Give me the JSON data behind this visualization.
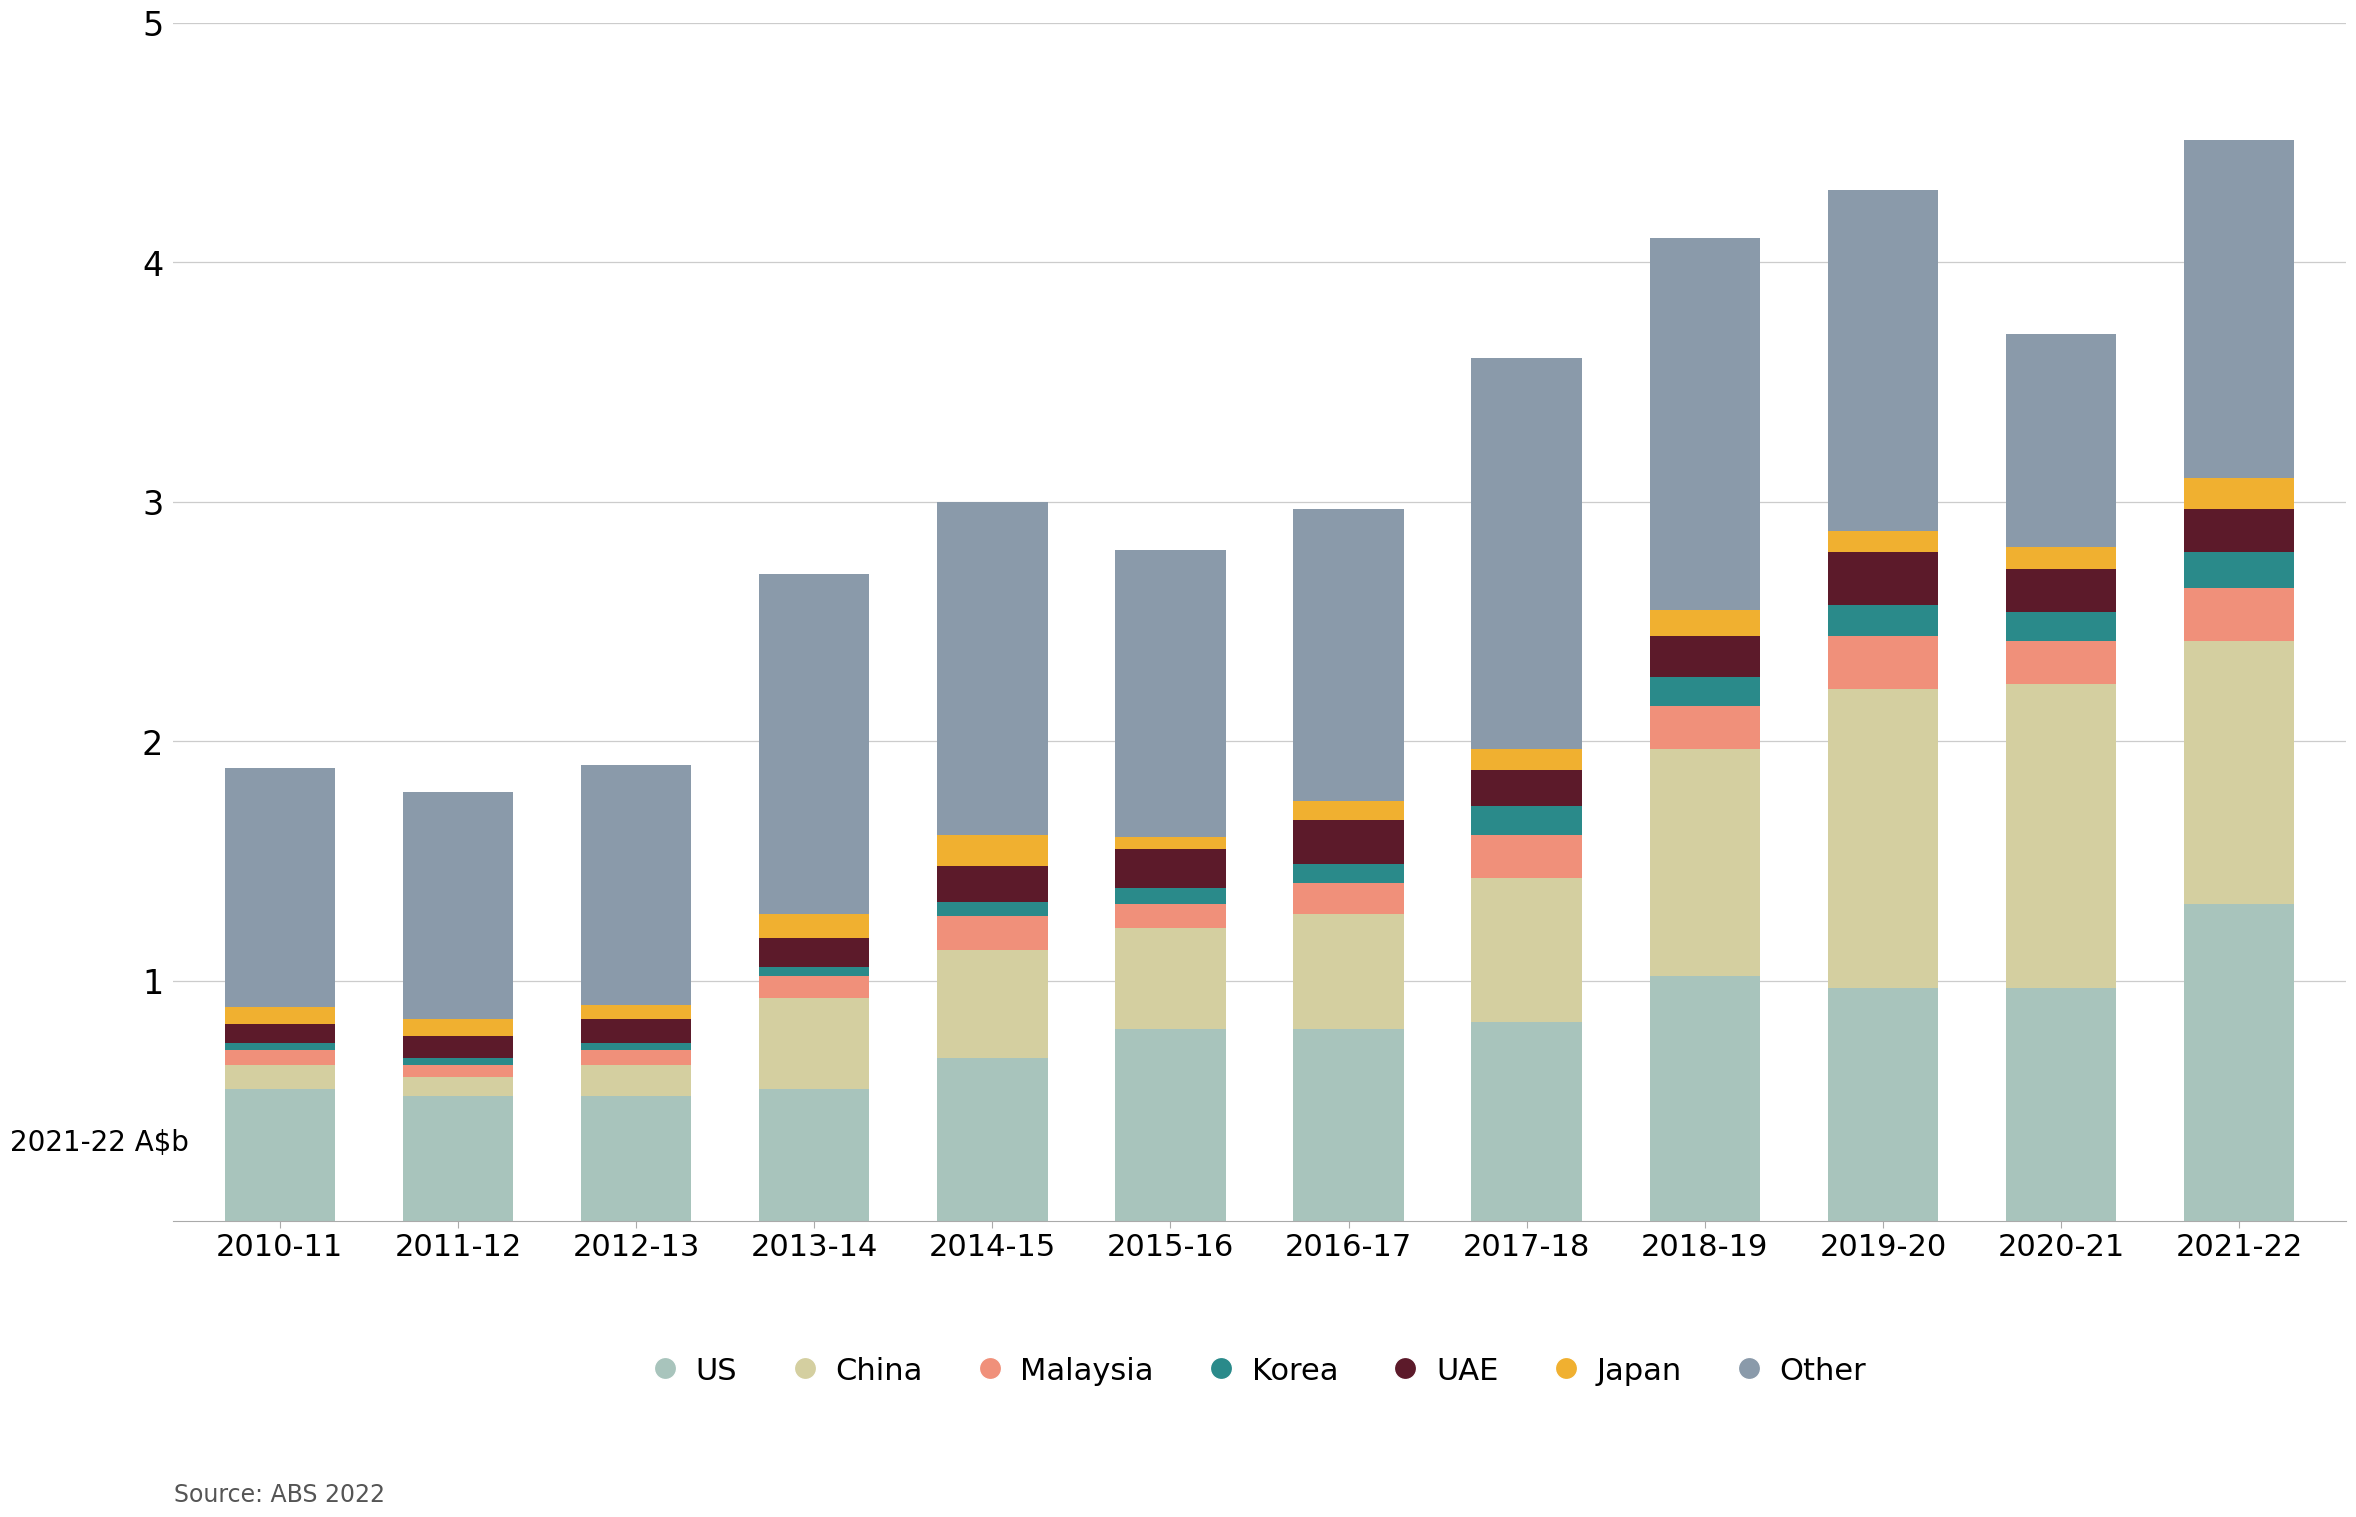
{
  "years": [
    "2010-11",
    "2011-12",
    "2012-13",
    "2013-14",
    "2014-15",
    "2015-16",
    "2016-17",
    "2017-18",
    "2018-19",
    "2019-20",
    "2020-21",
    "2021-22"
  ],
  "segments": {
    "US": [
      0.55,
      0.52,
      0.52,
      0.55,
      0.68,
      0.8,
      0.8,
      0.83,
      1.02,
      0.97,
      0.97,
      1.32
    ],
    "China": [
      0.1,
      0.08,
      0.13,
      0.38,
      0.45,
      0.42,
      0.48,
      0.6,
      0.95,
      1.25,
      1.27,
      1.1
    ],
    "Malaysia": [
      0.06,
      0.05,
      0.06,
      0.09,
      0.14,
      0.1,
      0.13,
      0.18,
      0.18,
      0.22,
      0.18,
      0.22
    ],
    "Korea": [
      0.03,
      0.03,
      0.03,
      0.04,
      0.06,
      0.07,
      0.08,
      0.12,
      0.12,
      0.13,
      0.12,
      0.15
    ],
    "UAE": [
      0.08,
      0.09,
      0.1,
      0.12,
      0.15,
      0.16,
      0.18,
      0.15,
      0.17,
      0.22,
      0.18,
      0.18
    ],
    "Japan": [
      0.07,
      0.07,
      0.06,
      0.1,
      0.13,
      0.05,
      0.08,
      0.09,
      0.11,
      0.09,
      0.09,
      0.13
    ],
    "Other": [
      1.0,
      0.95,
      1.0,
      1.42,
      1.39,
      1.2,
      1.22,
      1.63,
      1.55,
      1.42,
      0.89,
      1.41
    ]
  },
  "colors": {
    "US": "#a8c4bc",
    "China": "#d4cfa0",
    "Malaysia": "#f0907a",
    "Korea": "#2a8a8a",
    "UAE": "#5c1a2a",
    "Japan": "#f0b030",
    "Other": "#8a9aaa"
  },
  "ylabel": "2021-22 A$b",
  "ylim": [
    0,
    5
  ],
  "yticks": [
    1,
    2,
    3,
    4,
    5
  ],
  "source_text": "Source: ABS 2022",
  "legend_order": [
    "US",
    "China",
    "Malaysia",
    "Korea",
    "UAE",
    "Japan",
    "Other"
  ],
  "background_color": "#ffffff",
  "figure_size": [
    23.39,
    15.59
  ],
  "dpi": 100
}
